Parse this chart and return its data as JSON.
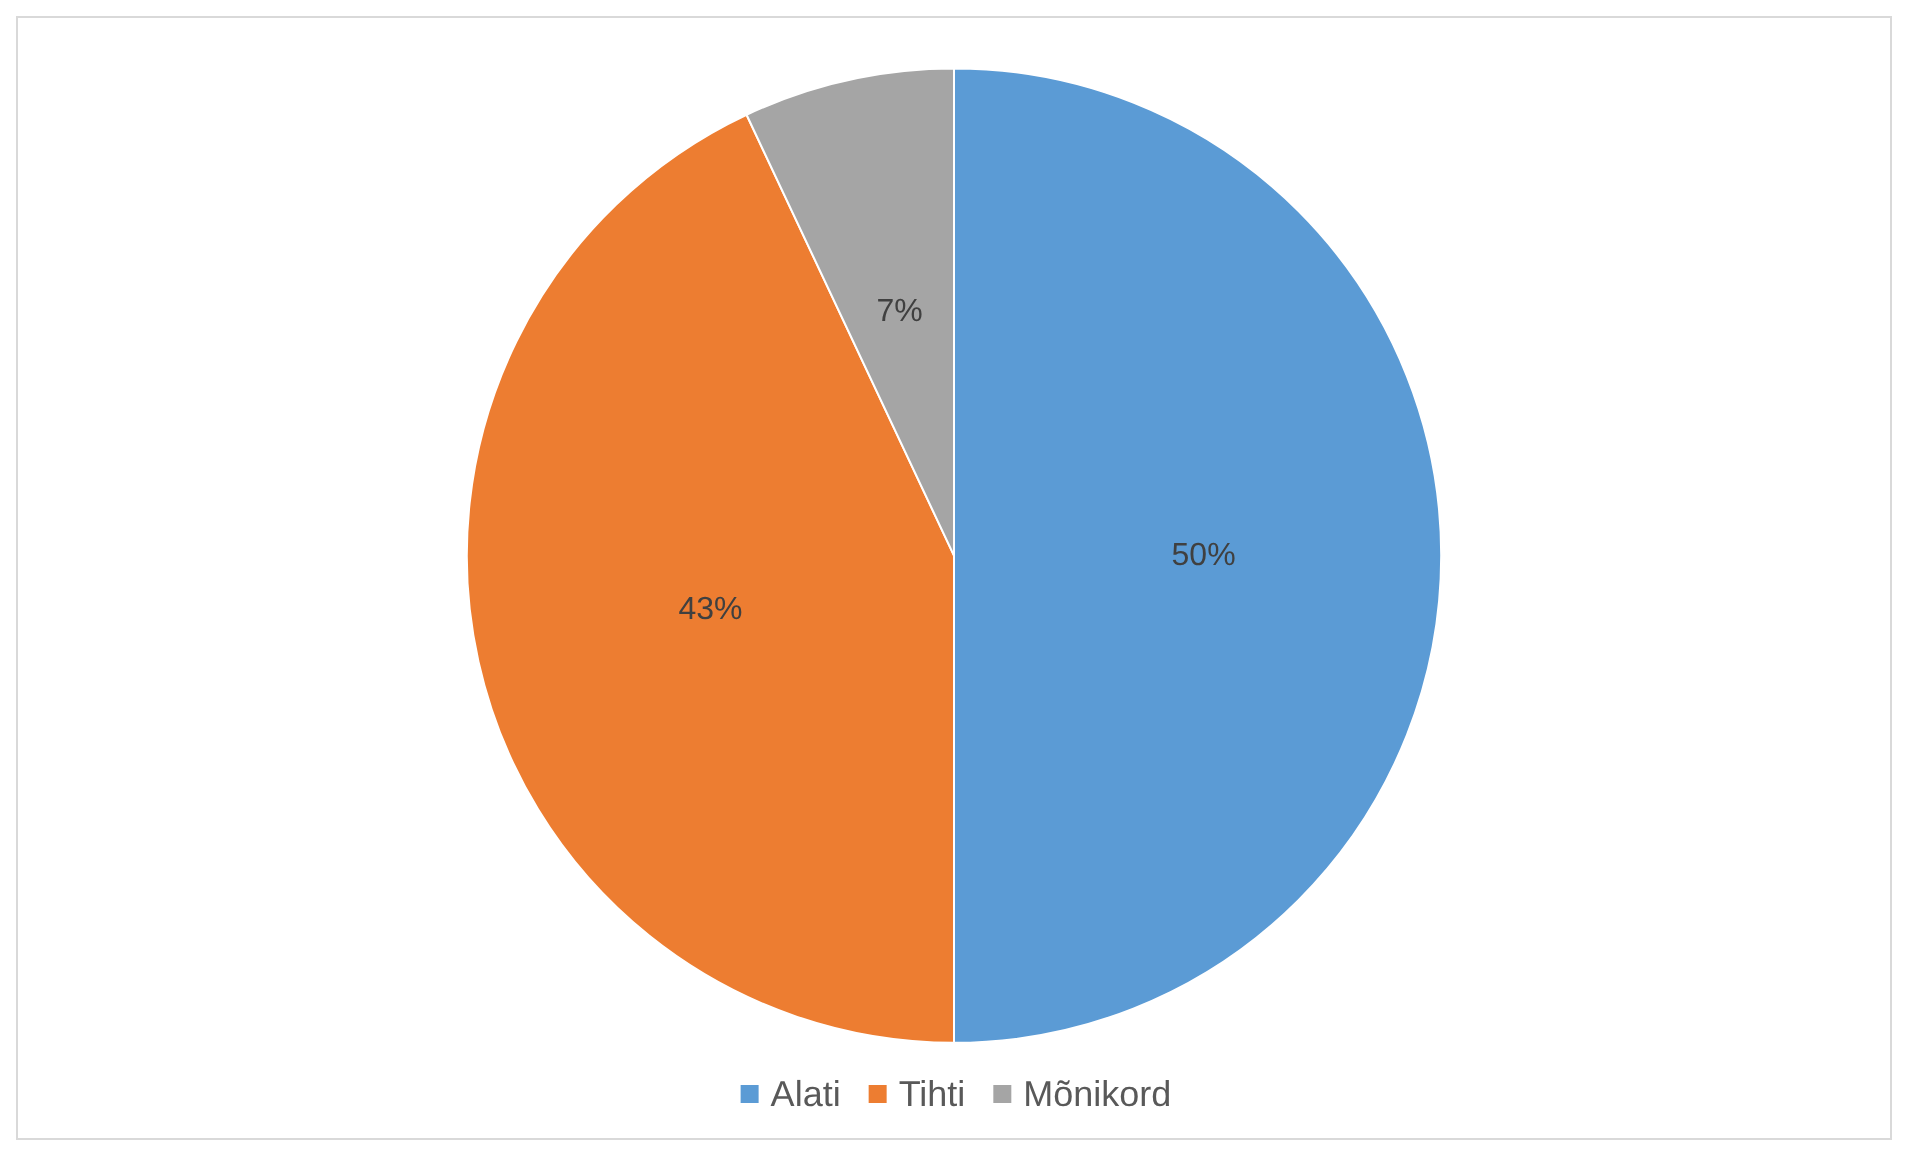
{
  "chart_data": {
    "type": "pie",
    "categories": [
      "Alati",
      "Tihti",
      "Mõnikord"
    ],
    "values": [
      50,
      43,
      7
    ],
    "colors": [
      "#5b9bd5",
      "#ed7d31",
      "#a5a5a5"
    ],
    "value_labels": [
      "50%",
      "43%",
      "7%"
    ],
    "legend": "bottom"
  }
}
